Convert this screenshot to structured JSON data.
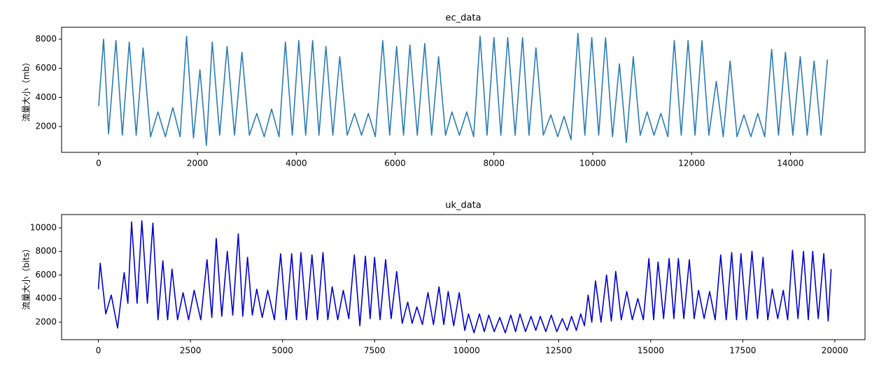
{
  "chart_data": [
    {
      "type": "line",
      "title": "ec_data",
      "ylabel": "流量大小（mb）",
      "color": "#2b7bb4",
      "xlim": [
        -750,
        15510
      ],
      "xticks": [
        0,
        2000,
        4000,
        6000,
        8000,
        10000,
        12000,
        14000
      ],
      "ylim": [
        224,
        8816
      ],
      "yticks": [
        2000,
        4000,
        6000,
        8000
      ],
      "x": [
        0,
        100,
        200,
        350,
        480,
        620,
        760,
        900,
        1050,
        1200,
        1350,
        1500,
        1650,
        1780,
        1920,
        2050,
        2180,
        2300,
        2450,
        2600,
        2750,
        2900,
        3050,
        3200,
        3350,
        3500,
        3650,
        3780,
        3920,
        4050,
        4190,
        4330,
        4460,
        4600,
        4740,
        4880,
        5030,
        5180,
        5320,
        5460,
        5600,
        5750,
        5890,
        6030,
        6170,
        6300,
        6450,
        6600,
        6740,
        6880,
        7020,
        7150,
        7300,
        7450,
        7590,
        7720,
        7860,
        8000,
        8140,
        8280,
        8430,
        8580,
        8710,
        8850,
        9000,
        9150,
        9290,
        9420,
        9560,
        9700,
        9840,
        9980,
        10120,
        10260,
        10400,
        10540,
        10680,
        10820,
        10960,
        11100,
        11240,
        11380,
        11520,
        11650,
        11790,
        11930,
        12070,
        12210,
        12350,
        12500,
        12640,
        12780,
        12920,
        13060,
        13200,
        13340,
        13480,
        13620,
        13760,
        13900,
        14050,
        14200,
        14340,
        14480,
        14620,
        14750
      ],
      "values": [
        3400,
        8000,
        1500,
        7900,
        1400,
        7800,
        1400,
        7400,
        1300,
        3000,
        1300,
        3300,
        1300,
        8200,
        1200,
        5900,
        700,
        7800,
        1400,
        7500,
        1400,
        7100,
        1400,
        2900,
        1300,
        3200,
        1300,
        7800,
        1400,
        7900,
        1400,
        7900,
        1400,
        7500,
        1400,
        6800,
        1400,
        2900,
        1400,
        2900,
        1300,
        7900,
        1400,
        7500,
        1400,
        7600,
        1400,
        7700,
        1400,
        6800,
        1400,
        3000,
        1400,
        3000,
        1300,
        8200,
        1400,
        8100,
        1400,
        8100,
        1400,
        8100,
        1400,
        7400,
        1400,
        2800,
        1300,
        2700,
        1100,
        8400,
        1400,
        8100,
        1400,
        8100,
        1300,
        6300,
        900,
        6800,
        1400,
        3000,
        1400,
        2900,
        1300,
        7900,
        1400,
        7900,
        1400,
        7900,
        1400,
        5100,
        1300,
        6500,
        1300,
        2800,
        1300,
        2900,
        1300,
        7300,
        1400,
        7100,
        1400,
        6800,
        1400,
        6500,
        1400,
        6600
      ]
    },
    {
      "type": "line",
      "title": "uk_data",
      "ylabel": "流量大小（bits）",
      "color": "#0000cc",
      "xlim": [
        -1000,
        20820
      ],
      "xticks": [
        0,
        2500,
        5000,
        7500,
        10000,
        12500,
        15000,
        17500,
        20000
      ],
      "ylim": [
        518,
        11126
      ],
      "yticks": [
        2000,
        4000,
        6000,
        8000,
        10000
      ],
      "x": [
        0,
        50,
        200,
        350,
        520,
        700,
        800,
        900,
        1050,
        1180,
        1330,
        1480,
        1620,
        1750,
        1880,
        2000,
        2150,
        2300,
        2450,
        2600,
        2780,
        2950,
        3080,
        3200,
        3350,
        3500,
        3650,
        3800,
        3920,
        4050,
        4180,
        4300,
        4450,
        4600,
        4780,
        4950,
        5100,
        5250,
        5380,
        5500,
        5650,
        5800,
        5950,
        6100,
        6230,
        6350,
        6500,
        6650,
        6800,
        6950,
        7100,
        7250,
        7380,
        7500,
        7650,
        7800,
        7950,
        8100,
        8250,
        8400,
        8520,
        8650,
        8800,
        8950,
        9100,
        9250,
        9380,
        9500,
        9650,
        9800,
        9950,
        10050,
        10200,
        10350,
        10480,
        10600,
        10750,
        10900,
        11050,
        11200,
        11330,
        11450,
        11600,
        11750,
        11880,
        12000,
        12150,
        12300,
        12450,
        12600,
        12730,
        12850,
        12980,
        13100,
        13200,
        13300,
        13400,
        13500,
        13650,
        13800,
        13930,
        14050,
        14200,
        14350,
        14500,
        14650,
        14800,
        14950,
        15080,
        15200,
        15350,
        15500,
        15630,
        15750,
        15900,
        16050,
        16180,
        16300,
        16450,
        16600,
        16750,
        16900,
        17050,
        17200,
        17330,
        17450,
        17600,
        17750,
        17900,
        18050,
        18180,
        18300,
        18450,
        18600,
        18720,
        18850,
        19000,
        19150,
        19280,
        19400,
        19550,
        19700,
        19820,
        19900
      ],
      "values": [
        4800,
        7000,
        2700,
        4300,
        1500,
        6200,
        3600,
        10500,
        3600,
        10600,
        3600,
        10400,
        2200,
        7200,
        2200,
        6500,
        2200,
        4500,
        2200,
        4700,
        2200,
        7300,
        2400,
        9100,
        2500,
        8000,
        2600,
        9500,
        2500,
        7500,
        2600,
        4800,
        2400,
        4700,
        2200,
        7800,
        2200,
        7800,
        2200,
        7900,
        2200,
        7700,
        2200,
        7900,
        2200,
        5000,
        2200,
        4700,
        2300,
        7700,
        1700,
        7600,
        2300,
        7500,
        2200,
        7300,
        2300,
        6300,
        1900,
        3700,
        1900,
        3300,
        1800,
        4500,
        1800,
        5000,
        1800,
        4600,
        1700,
        4500,
        1300,
        2700,
        1100,
        2700,
        1200,
        2600,
        1200,
        2400,
        1100,
        2600,
        1200,
        2700,
        1200,
        2500,
        1300,
        2500,
        1200,
        2600,
        1200,
        2300,
        1300,
        2500,
        1300,
        2700,
        1700,
        4300,
        2000,
        5500,
        2000,
        6000,
        2100,
        6300,
        2200,
        4600,
        2200,
        4000,
        2200,
        7400,
        2200,
        7100,
        2300,
        7400,
        2300,
        7400,
        2300,
        7300,
        2300,
        4700,
        2300,
        4600,
        2200,
        7700,
        2200,
        7900,
        2200,
        7800,
        2200,
        8000,
        2300,
        7500,
        2200,
        4800,
        2300,
        4700,
        2200,
        8100,
        2300,
        8000,
        2200,
        8000,
        2300,
        7800,
        2100,
        6500
      ]
    }
  ]
}
